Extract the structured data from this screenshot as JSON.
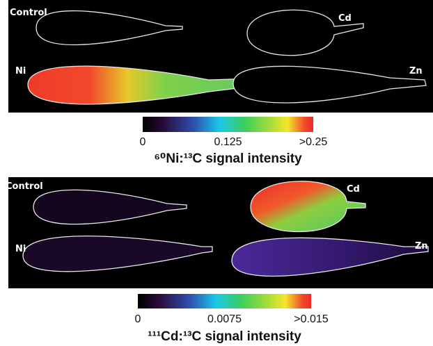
{
  "panels": [
    {
      "labels": {
        "control": "Control",
        "cd": "Cd",
        "ni": "Ni",
        "zn": "Zn"
      },
      "colorbar": {
        "range": [
          0,
          0.25
        ],
        "ticks": [
          0,
          0.125,
          {
            "value": 0.25,
            "label": ">0.25"
          }
        ],
        "title": "⁶⁰Ni:¹³C signal intensity"
      }
    },
    {
      "labels": {
        "control": "Control",
        "cd": "Cd",
        "ni": "Ni",
        "zn": "Zn"
      },
      "colorbar": {
        "range": [
          0,
          0.015
        ],
        "ticks": [
          0,
          0.0075,
          {
            "value": 0.015,
            "label": ">0.015"
          }
        ],
        "title": "¹¹¹Cd:¹³C signal intensity"
      }
    }
  ]
}
